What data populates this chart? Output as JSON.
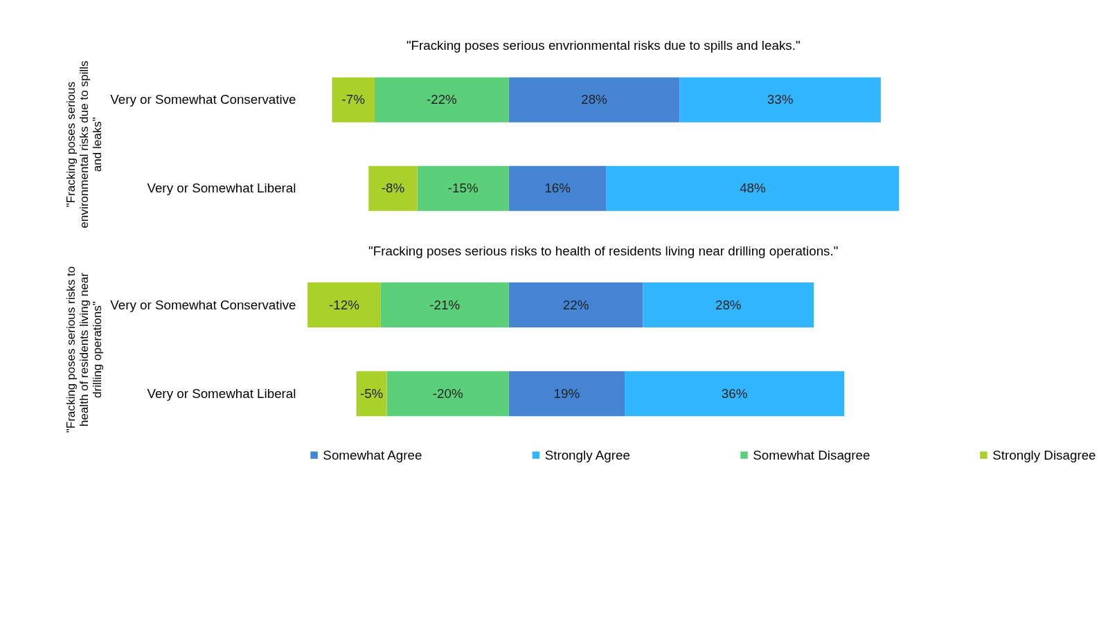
{
  "chart_data": [
    {
      "type": "bar",
      "orientation": "horizontal",
      "stacked": true,
      "title": "\"Fracking poses serious envrionmental risks due to spills and leaks.\"",
      "ylabel": "\"Fracking poses serious environmental risks due to spills and leaks\"",
      "categories": [
        "Very or Somewhat Conservative",
        "Very or Somewhat Liberal"
      ],
      "grid": false,
      "legend": "bottom",
      "series": [
        {
          "name": "Somewhat Agree",
          "color": "#4584d3",
          "values": [
            28,
            16
          ],
          "value_labels": [
            "28%",
            "16%"
          ]
        },
        {
          "name": "Strongly Agree",
          "color": "#31b6fd",
          "values": [
            33,
            48
          ],
          "value_labels": [
            "33%",
            "48%"
          ]
        },
        {
          "name": "Somewhat Disagree",
          "color": "#5bcf7a",
          "values": [
            -22,
            -15
          ],
          "value_labels": [
            "-22%",
            "-15%"
          ]
        },
        {
          "name": "Strongly Disagree",
          "color": "#a9d12a",
          "values": [
            -7,
            -8
          ],
          "value_labels": [
            "-7%",
            "-8%"
          ]
        }
      ]
    },
    {
      "type": "bar",
      "orientation": "horizontal",
      "stacked": true,
      "title": "\"Fracking poses serious risks to health of residents living near drilling operations.\"",
      "ylabel": "\"Fracking poses serious risks to health of residents living near drilling operations\"",
      "categories": [
        "Very or Somewhat Conservative",
        "Very or Somewhat Liberal"
      ],
      "grid": false,
      "legend": "bottom",
      "series": [
        {
          "name": "Somewhat Agree",
          "color": "#4584d3",
          "values": [
            22,
            19
          ],
          "value_labels": [
            "22%",
            "19%"
          ]
        },
        {
          "name": "Strongly Agree",
          "color": "#31b6fd",
          "values": [
            28,
            36
          ],
          "value_labels": [
            "28%",
            "36%"
          ]
        },
        {
          "name": "Somewhat Disagree",
          "color": "#5bcf7a",
          "values": [
            -21,
            -20
          ],
          "value_labels": [
            "-21%",
            "-20%"
          ]
        },
        {
          "name": "Strongly Disagree",
          "color": "#a9d12a",
          "values": [
            -12,
            -5
          ],
          "value_labels": [
            "-12%",
            "-5%"
          ]
        }
      ]
    }
  ]
}
